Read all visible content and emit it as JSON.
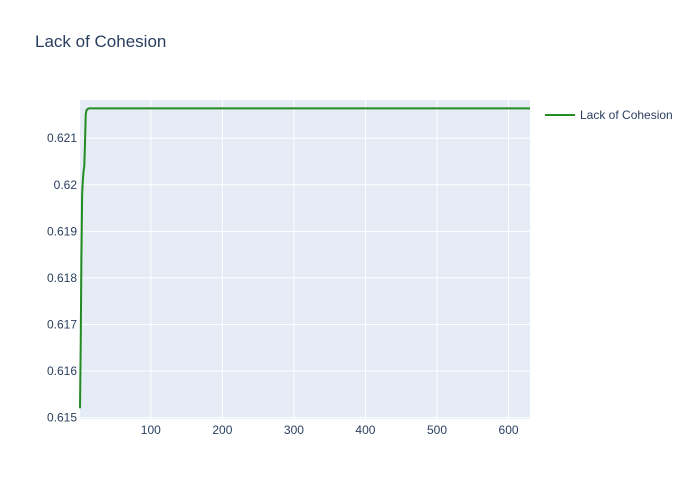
{
  "chart_data": {
    "type": "line",
    "title": "Lack of Cohesion",
    "xlabel": "",
    "ylabel": "",
    "xlim": [
      1,
      630
    ],
    "ylim": [
      0.61497,
      0.62182
    ],
    "x_ticks": [
      100,
      200,
      300,
      400,
      500,
      600
    ],
    "y_ticks": [
      0.615,
      0.616,
      0.617,
      0.618,
      0.619,
      0.62,
      0.621
    ],
    "y_tick_labels": [
      "0.615",
      "0.616",
      "0.617",
      "0.618",
      "0.619",
      "0.62",
      "0.621"
    ],
    "grid": true,
    "legend_position": "top-right",
    "series": [
      {
        "name": "Lack of Cohesion",
        "color": "#228b22",
        "x": [
          1,
          2,
          3,
          4,
          5,
          6,
          7,
          8,
          9,
          10,
          12,
          14,
          16,
          20,
          30,
          50,
          100,
          200,
          300,
          400,
          500,
          600,
          630
        ],
        "y": [
          0.6152,
          0.6166,
          0.6185,
          0.6198,
          0.6201,
          0.6203,
          0.6204,
          0.6209,
          0.6215,
          0.6216,
          0.62163,
          0.62164,
          0.62164,
          0.62164,
          0.62164,
          0.62164,
          0.62164,
          0.62164,
          0.62164,
          0.62164,
          0.62164,
          0.62164,
          0.62164
        ]
      }
    ]
  }
}
